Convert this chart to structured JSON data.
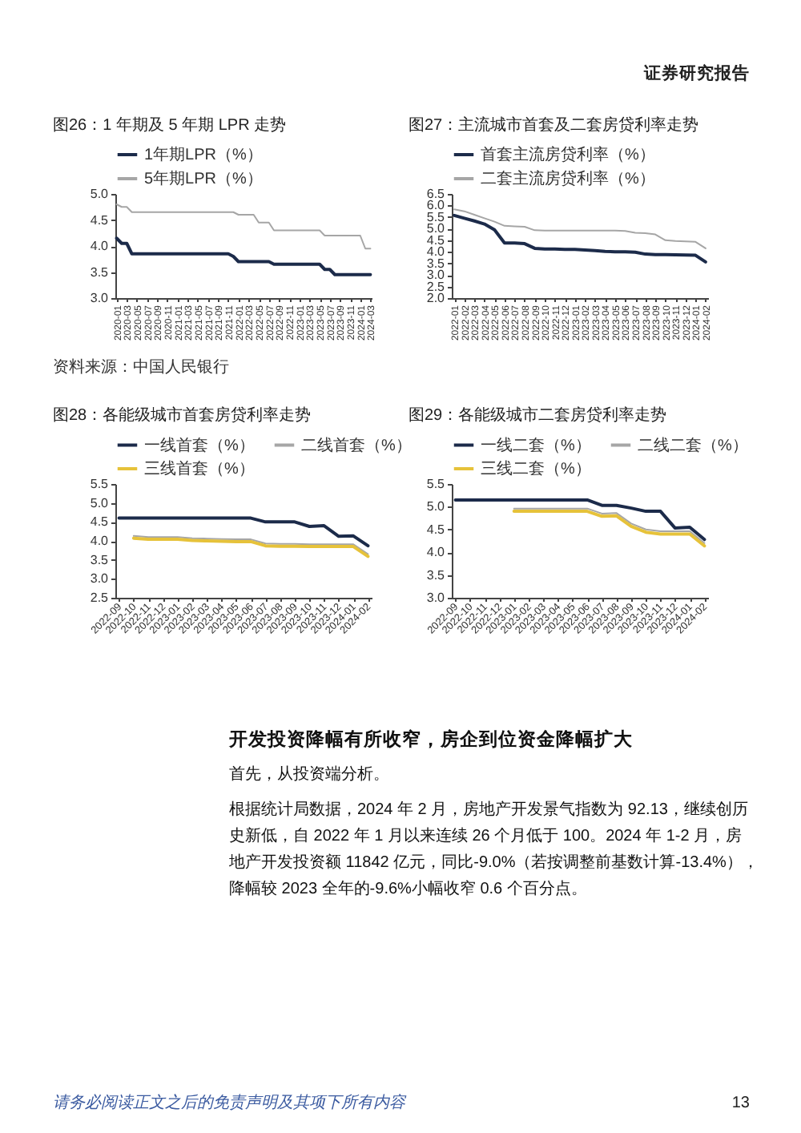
{
  "chart_data": [
    {
      "type": "other",
      "annotations": [
        "证券研究报告"
      ]
    },
    {
      "type": "line",
      "title": "图26：1 年期及 5 年期 LPR 走势",
      "categories": [
        "2020-01",
        null,
        "2020-03",
        null,
        "2020-05",
        null,
        "2020-07",
        null,
        "2020-09",
        null,
        "2020-11",
        null,
        "2021-01",
        null,
        "2021-03",
        null,
        "2021-05",
        null,
        "2021-07",
        null,
        "2021-09",
        null,
        "2021-11",
        null,
        "2022-01",
        null,
        "2022-03",
        null,
        "2022-05",
        null,
        "2022-07",
        null,
        "2022-09",
        null,
        "2022-11",
        null,
        "2023-01",
        null,
        "2023-03",
        null,
        "2023-05",
        null,
        "2023-07",
        null,
        "2023-09",
        null,
        "2023-11",
        null,
        "2024-01",
        null,
        "2024-03"
      ],
      "series": [
        {
          "name": "1年期LPR（%）",
          "color": "#1c2b4a",
          "values": [
            4.15,
            4.05,
            4.05,
            3.85,
            3.85,
            3.85,
            3.85,
            3.85,
            3.85,
            3.85,
            3.85,
            3.85,
            3.85,
            3.85,
            3.85,
            3.85,
            3.85,
            3.85,
            3.85,
            3.85,
            3.85,
            3.85,
            3.85,
            3.8,
            3.7,
            3.7,
            3.7,
            3.7,
            3.7,
            3.7,
            3.7,
            3.65,
            3.65,
            3.65,
            3.65,
            3.65,
            3.65,
            3.65,
            3.65,
            3.65,
            3.65,
            3.55,
            3.55,
            3.45,
            3.45,
            3.45,
            3.45,
            3.45,
            3.45,
            3.45,
            3.45
          ]
        },
        {
          "name": "5年期LPR（%）",
          "color": "#a6a6a6",
          "values": [
            4.8,
            4.75,
            4.75,
            4.65,
            4.65,
            4.65,
            4.65,
            4.65,
            4.65,
            4.65,
            4.65,
            4.65,
            4.65,
            4.65,
            4.65,
            4.65,
            4.65,
            4.65,
            4.65,
            4.65,
            4.65,
            4.65,
            4.65,
            4.65,
            4.6,
            4.6,
            4.6,
            4.6,
            4.45,
            4.45,
            4.45,
            4.3,
            4.3,
            4.3,
            4.3,
            4.3,
            4.3,
            4.3,
            4.3,
            4.3,
            4.3,
            4.2,
            4.2,
            4.2,
            4.2,
            4.2,
            4.2,
            4.2,
            4.2,
            3.95,
            3.95
          ]
        }
      ],
      "ylim": [
        3,
        5
      ],
      "yticks": [
        {
          "value": 3,
          "label": "3.0"
        },
        3.5,
        {
          "value": 4,
          "label": "4.0"
        },
        4.5,
        {
          "value": 5,
          "label": "5.0"
        }
      ],
      "legend": "top",
      "annotations": [
        "资料来源：中国人民银行"
      ]
    },
    {
      "type": "line",
      "title": "图27：主流城市首套及二套房贷利率走势",
      "categories": [
        "2022-01",
        "2022-02",
        "2022-03",
        "2022-04",
        "2022-05",
        "2022-06",
        "2022-07",
        "2022-08",
        "2022-09",
        "2022-10",
        "2022-11",
        "2022-12",
        "2023-01",
        "2023-02",
        "2023-03",
        "2023-04",
        "2023-05",
        "2023-06",
        "2023-07",
        "2023-08",
        "2023-09",
        "2023-10",
        "2023-11",
        "2023-12",
        "2024-01",
        "2024-02"
      ],
      "series": [
        {
          "name": "首套主流房贷利率（%）",
          "color": "#1c2b4a",
          "values": [
            5.57,
            5.45,
            5.33,
            5.2,
            4.95,
            4.38,
            4.38,
            4.35,
            4.15,
            4.12,
            4.12,
            4.1,
            4.1,
            4.08,
            4.05,
            4.02,
            4.0,
            4.0,
            3.98,
            3.9,
            3.88,
            3.88,
            3.87,
            3.86,
            3.85,
            3.56
          ]
        },
        {
          "name": "二套主流房贷利率（%）",
          "color": "#a6a6a6",
          "values": [
            5.83,
            5.75,
            5.6,
            5.45,
            5.3,
            5.12,
            5.1,
            5.08,
            4.93,
            4.92,
            4.92,
            4.92,
            4.92,
            4.92,
            4.92,
            4.92,
            4.92,
            4.9,
            4.82,
            4.8,
            4.75,
            4.5,
            4.47,
            4.45,
            4.43,
            4.15
          ]
        }
      ],
      "ylim": [
        2,
        6.5
      ],
      "yticks": [
        {
          "value": 2,
          "label": "2.0"
        },
        2.5,
        {
          "value": 3,
          "label": "3.0"
        },
        3.5,
        {
          "value": 4,
          "label": "4.0"
        },
        4.5,
        {
          "value": 5,
          "label": "5.0"
        },
        5.5,
        {
          "value": 6,
          "label": "6.0"
        },
        6.5
      ],
      "legend": "top"
    },
    {
      "type": "line",
      "title": "图28：各能级城市首套房贷利率走势",
      "categories": [
        "2022-09",
        "2022-10",
        "2022-11",
        "2022-12",
        "2023-01",
        "2023-02",
        "2023-03",
        "2023-04",
        "2023-05",
        "2023-06",
        "2023-07",
        "2023-08",
        "2023-09",
        "2023-10",
        "2023-11",
        "2023-12",
        "2024-01",
        "2024-02"
      ],
      "series": [
        {
          "name": "一线首套（%）",
          "color": "#1c2b4a",
          "values": [
            4.6,
            4.6,
            4.6,
            4.6,
            4.6,
            4.6,
            4.6,
            4.6,
            4.6,
            4.6,
            4.5,
            4.5,
            4.5,
            4.38,
            4.4,
            4.12,
            4.13,
            3.87
          ]
        },
        {
          "name": "二线首套（%）",
          "color": "#a6a6a6",
          "values": [
            null,
            4.13,
            4.1,
            4.1,
            4.1,
            4.07,
            4.06,
            4.05,
            4.04,
            4.04,
            3.93,
            3.92,
            3.92,
            3.91,
            3.91,
            3.91,
            3.91,
            3.65
          ]
        },
        {
          "name": "三线首套（%）",
          "color": "#e6c23a",
          "values": [
            null,
            4.07,
            4.04,
            4.04,
            4.04,
            4.01,
            4.0,
            3.99,
            3.98,
            3.98,
            3.87,
            3.86,
            3.86,
            3.85,
            3.85,
            3.85,
            3.85,
            3.59
          ]
        }
      ],
      "ylim": [
        2.5,
        5.5
      ],
      "yticks": [
        2.5,
        {
          "value": 3,
          "label": "3.0"
        },
        3.5,
        {
          "value": 4,
          "label": "4.0"
        },
        4.5,
        {
          "value": 5,
          "label": "5.0"
        },
        5.5
      ],
      "legend": "top"
    },
    {
      "type": "line",
      "title": "图29：各能级城市二套房贷利率走势",
      "categories": [
        "2022-09",
        "2022-10",
        "2022-11",
        "2022-12",
        "2023-01",
        "2023-02",
        "2023-03",
        "2023-04",
        "2023-05",
        "2023-06",
        "2023-07",
        "2023-08",
        "2023-09",
        "2023-10",
        "2023-11",
        "2023-12",
        "2024-01",
        "2024-02"
      ],
      "series": [
        {
          "name": "一线二套（%）",
          "color": "#1c2b4a",
          "values": [
            5.15,
            5.15,
            5.15,
            5.15,
            5.15,
            5.15,
            5.15,
            5.15,
            5.15,
            5.15,
            5.03,
            5.03,
            4.97,
            4.9,
            4.9,
            4.53,
            4.55,
            4.28
          ]
        },
        {
          "name": "二线二套（%）",
          "color": "#a6a6a6",
          "values": [
            null,
            null,
            null,
            null,
            4.96,
            4.96,
            4.96,
            4.96,
            4.96,
            4.96,
            4.85,
            4.86,
            4.63,
            4.5,
            4.46,
            4.46,
            4.46,
            4.2
          ]
        },
        {
          "name": "三线二套（%）",
          "color": "#e6c23a",
          "values": [
            null,
            null,
            null,
            null,
            4.9,
            4.9,
            4.9,
            4.9,
            4.9,
            4.9,
            4.79,
            4.8,
            4.57,
            4.44,
            4.4,
            4.4,
            4.4,
            4.14
          ]
        }
      ],
      "ylim": [
        3,
        5.5
      ],
      "yticks": [
        {
          "value": 3,
          "label": "3.0"
        },
        3.5,
        {
          "value": 4,
          "label": "4.0"
        },
        4.5,
        {
          "value": 5,
          "label": "5.0"
        },
        5.5
      ],
      "legend": "top"
    },
    {
      "type": "other",
      "title": "开发投资降幅有所收窄，房企到位资金降幅扩大",
      "annotations": [
        "首先，从投资端分析。",
        "根据统计局数据，2024 年 2 月，房地产开发景气指数为 92.13，继续创历史新低，自 2022 年 1 月以来连续 26 个月低于 100。2024 年 1-2 月，房地产开发投资额 11842 亿元，同比-9.0%（若按调整前基数计算-13.4%），降幅较 2023 全年的-9.6%小幅收窄 0.6 个百分点。"
      ]
    },
    {
      "type": "other",
      "annotations": [
        "请务必阅读正文之后的免责声明及其项下所有内容",
        "13"
      ]
    }
  ]
}
